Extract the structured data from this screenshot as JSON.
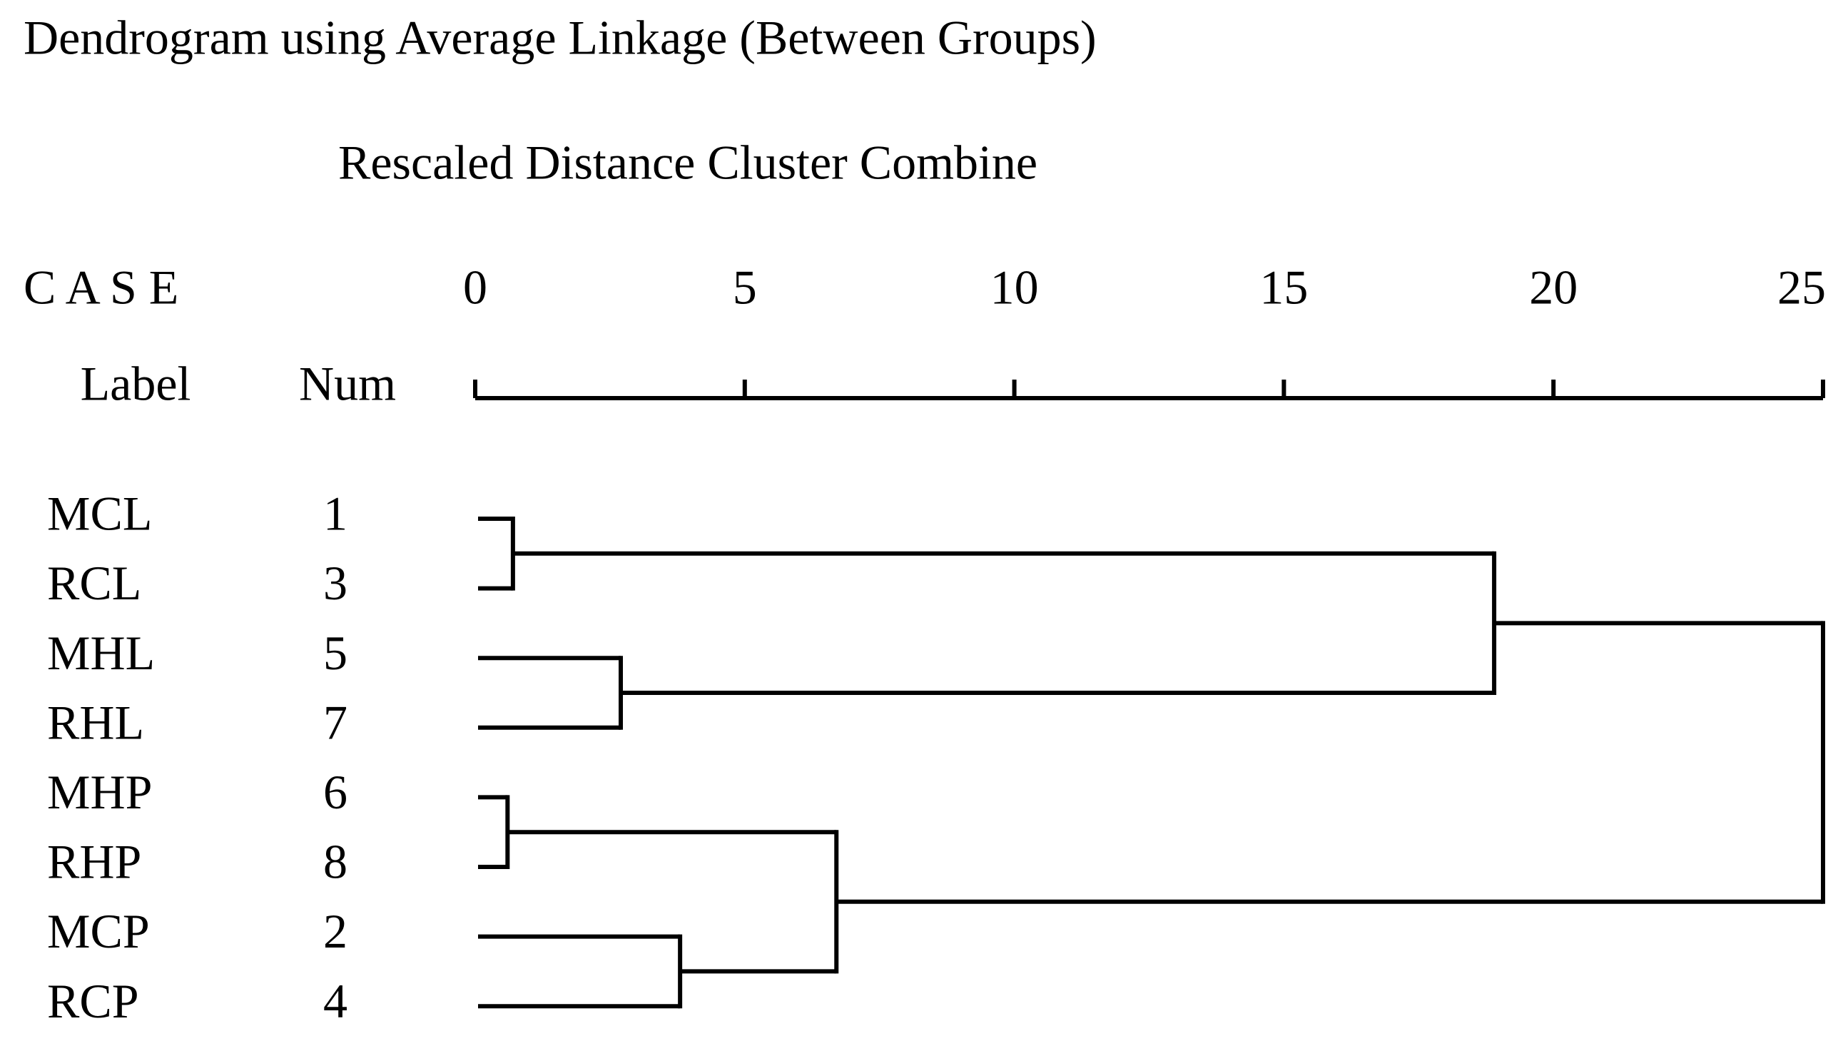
{
  "chart_data": {
    "type": "dendrogram",
    "title": "Dendrogram using Average Linkage (Between Groups)",
    "xlabel": "Rescaled Distance Cluster Combine",
    "case_header": "C A S E",
    "label_header": "Label",
    "num_header": "Num",
    "xlim": [
      0,
      25
    ],
    "xticks": [
      0,
      5,
      10,
      15,
      20,
      25
    ],
    "color": "#000000",
    "tree": {
      "distance": 25,
      "children": [
        {
          "distance": 18.9,
          "children": [
            {
              "distance": 0.7,
              "children": [
                {
                  "label": "MCL",
                  "num": 1
                },
                {
                  "label": "RCL",
                  "num": 3
                }
              ]
            },
            {
              "distance": 2.7,
              "children": [
                {
                  "label": "MHL",
                  "num": 5
                },
                {
                  "label": "RHL",
                  "num": 7
                }
              ]
            }
          ]
        },
        {
          "distance": 6.7,
          "children": [
            {
              "distance": 0.6,
              "children": [
                {
                  "label": "MHP",
                  "num": 6
                },
                {
                  "label": "RHP",
                  "num": 8
                }
              ]
            },
            {
              "distance": 3.8,
              "children": [
                {
                  "label": "MCP",
                  "num": 2
                },
                {
                  "label": "RCP",
                  "num": 4
                }
              ]
            }
          ]
        }
      ]
    }
  }
}
